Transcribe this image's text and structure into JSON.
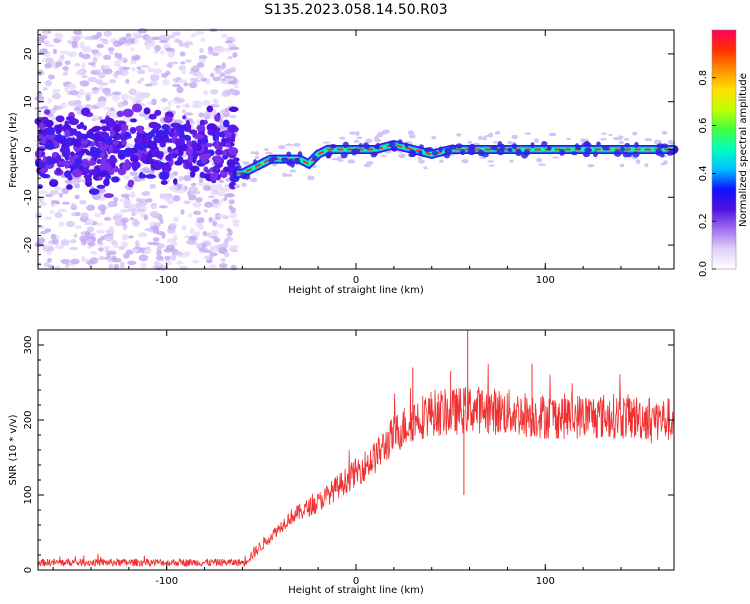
{
  "title": "S135.2023.058.14.50.R03",
  "chart_data": [
    {
      "type": "heatmap",
      "xlabel": "Height of straight line (km)",
      "ylabel": "Frequency (Hz)",
      "xlim": [
        -168,
        168
      ],
      "ylim": [
        -25,
        25
      ],
      "xticks": [
        -100,
        0,
        100
      ],
      "yticks": [
        -20,
        -10,
        0,
        10,
        20
      ],
      "colorbar": {
        "label": "Normalized spectral amplitude",
        "range": [
          0,
          1
        ],
        "ticks": [
          0.0,
          0.2,
          0.4,
          0.6,
          0.8
        ],
        "colors": [
          "#ffffff",
          "#e0d0f8",
          "#a070f0",
          "#5010e0",
          "#1010ff",
          "#00c0ff",
          "#00ffc0",
          "#40ff40",
          "#c0ff00",
          "#ffe000",
          "#ff9000",
          "#ff3000",
          "#ff0060"
        ]
      },
      "signal_track": {
        "x": [
          -168,
          -130,
          -100,
          -80,
          -65,
          -60,
          -55,
          -50,
          -45,
          -40,
          -30,
          -25,
          -20,
          -15,
          -10,
          0,
          10,
          20,
          30,
          40,
          50,
          60,
          80,
          100,
          120,
          140,
          150,
          168
        ],
        "y": [
          0,
          0,
          0,
          0,
          -5,
          -5,
          -4,
          -3,
          -2,
          -2,
          -2,
          -3,
          -1,
          0,
          0,
          0,
          0,
          1,
          0,
          -1,
          0,
          0,
          0,
          0,
          0,
          0,
          0,
          0
        ]
      },
      "noise_region": [
        -168,
        -63
      ]
    },
    {
      "type": "line",
      "xlabel": "Height of straight line (km)",
      "ylabel": "SNR (10 * v/v)",
      "xlim": [
        -168,
        168
      ],
      "ylim": [
        0,
        320
      ],
      "xticks": [
        -100,
        0,
        100
      ],
      "yticks": [
        0,
        100,
        200,
        300
      ],
      "color": "#f03030",
      "envelope": {
        "x": [
          -168,
          -60,
          -55,
          -45,
          -35,
          -20,
          -10,
          0,
          10,
          20,
          30,
          40,
          50,
          60,
          80,
          100,
          120,
          140,
          168
        ],
        "y": [
          10,
          10,
          20,
          45,
          70,
          90,
          110,
          130,
          150,
          180,
          200,
          210,
          210,
          215,
          210,
          205,
          205,
          205,
          200
        ]
      },
      "noise_level": [
        4,
        20
      ],
      "spikes": [
        {
          "x": 59,
          "y": 320
        },
        {
          "x": 57,
          "y": 100
        },
        {
          "x": 30,
          "y": 270
        },
        {
          "x": 50,
          "y": 265
        },
        {
          "x": 93,
          "y": 275
        }
      ]
    }
  ]
}
